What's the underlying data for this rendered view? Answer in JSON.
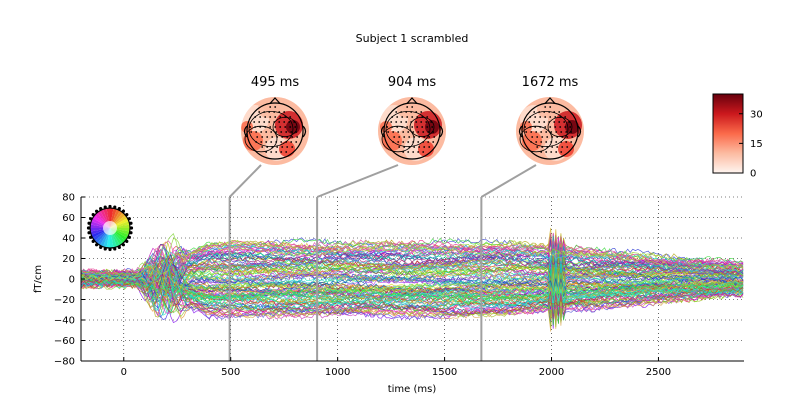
{
  "figure": {
    "title": "Subject 1 scrambled"
  },
  "chart_data": {
    "type": "line",
    "title": "Subject 1 scrambled",
    "xlabel": "time (ms)",
    "ylabel": "fT/cm",
    "xlim": [
      -200,
      2900
    ],
    "ylim": [
      -80,
      80
    ],
    "x_ticks": [
      0,
      500,
      1000,
      1500,
      2000,
      2500
    ],
    "y_ticks": [
      -80,
      -60,
      -40,
      -20,
      0,
      20,
      40,
      60,
      80
    ],
    "grid": true,
    "grid_style": "dotted",
    "series_description": "many overlaid sensor traces (butterfly plot)",
    "topomaps": [
      {
        "time_ms": 495,
        "label": "495 ms"
      },
      {
        "time_ms": 904,
        "label": "904 ms"
      },
      {
        "time_ms": 1672,
        "label": "1672 ms"
      }
    ],
    "colorbar": {
      "ticks": [
        0,
        15,
        30
      ],
      "range": [
        0,
        40
      ],
      "colormap": "Reds",
      "colors": [
        "#fff5f0",
        "#fcbba1",
        "#fb6a4a",
        "#cb181d",
        "#67000d"
      ]
    },
    "sensor_legend": "sensor position color wheel",
    "vline_color": "#a0a0a0"
  }
}
